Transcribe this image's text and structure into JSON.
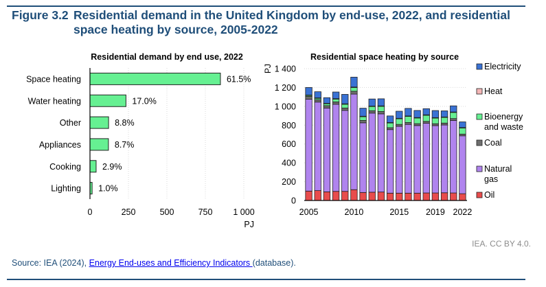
{
  "header": {
    "figure_label": "Figure 3.2",
    "title": "Residential demand in the United Kingdom by end-use, 2022, and residential space heating by source, 2005-2022"
  },
  "footer": {
    "credit": "IEA. CC BY 4.0.",
    "source_prefix": "Source: IEA (2024), ",
    "source_link": "Energy End-uses and Efficiency Indicators ",
    "source_suffix": "(database)."
  },
  "chart_data": [
    {
      "type": "bar",
      "orientation": "horizontal",
      "title": "Residential demand by end use, 2022",
      "xlabel": "PJ",
      "ylabel": "",
      "xlim": [
        0,
        1000
      ],
      "xticks": [
        "0",
        "250",
        "500",
        "750",
        "1 000"
      ],
      "grid": true,
      "categories": [
        "Space heating",
        "Water heating",
        "Other",
        "Appliances",
        "Cooking",
        "Lighting"
      ],
      "values": [
        848,
        234,
        121,
        120,
        40,
        14
      ],
      "data_labels": [
        "61.5%",
        "17.0%",
        "8.8%",
        "8.7%",
        "2.9%",
        "1.0%"
      ],
      "color": "#66f092"
    },
    {
      "type": "bar",
      "stacked": true,
      "title": "Residential space heating by source",
      "xlabel": "",
      "ylabel": "PJ",
      "ylim": [
        0,
        1400
      ],
      "yticks": [
        "0",
        "200",
        "400",
        "600",
        "800",
        "1 000",
        "1 200",
        "1 400"
      ],
      "grid": true,
      "x": [
        2005,
        2006,
        2007,
        2008,
        2009,
        2010,
        2011,
        2012,
        2013,
        2014,
        2015,
        2016,
        2017,
        2018,
        2019,
        2020,
        2021,
        2022
      ],
      "xtick_labels": [
        "2005",
        "2010",
        "2015",
        "2019",
        "2022"
      ],
      "legend_position": "right",
      "series": [
        {
          "name": "Oil",
          "color": "#e84c4c",
          "values": [
            100,
            105,
            92,
            97,
            97,
            115,
            85,
            88,
            90,
            78,
            78,
            78,
            78,
            80,
            80,
            82,
            80,
            72
          ]
        },
        {
          "name": "Natural gas",
          "color": "#b084ee",
          "values": [
            975,
            940,
            890,
            925,
            860,
            1015,
            740,
            840,
            830,
            675,
            710,
            730,
            718,
            740,
            715,
            720,
            770,
            615
          ]
        },
        {
          "name": "Coal",
          "color": "#6e6e6e",
          "values": [
            30,
            25,
            25,
            25,
            25,
            30,
            25,
            25,
            25,
            20,
            20,
            20,
            20,
            20,
            20,
            20,
            20,
            18
          ]
        },
        {
          "name": "Bioenergy and waste",
          "color": "#66f092",
          "values": [
            10,
            15,
            20,
            30,
            40,
            40,
            40,
            45,
            55,
            50,
            60,
            65,
            60,
            65,
            60,
            60,
            65,
            65
          ]
        },
        {
          "name": "Heat",
          "color": "#f4b6b6",
          "values": [
            5,
            5,
            5,
            5,
            5,
            5,
            5,
            5,
            5,
            5,
            5,
            5,
            5,
            5,
            5,
            5,
            5,
            5
          ]
        },
        {
          "name": "Electricity",
          "color": "#3a72d4",
          "values": [
            80,
            65,
            60,
            70,
            100,
            105,
            85,
            75,
            75,
            70,
            75,
            80,
            75,
            65,
            75,
            65,
            65,
            60
          ]
        }
      ],
      "legend_order": [
        "Electricity",
        "Heat",
        "Bioenergy and waste",
        "Coal",
        "Natural gas",
        "Oil"
      ]
    }
  ]
}
